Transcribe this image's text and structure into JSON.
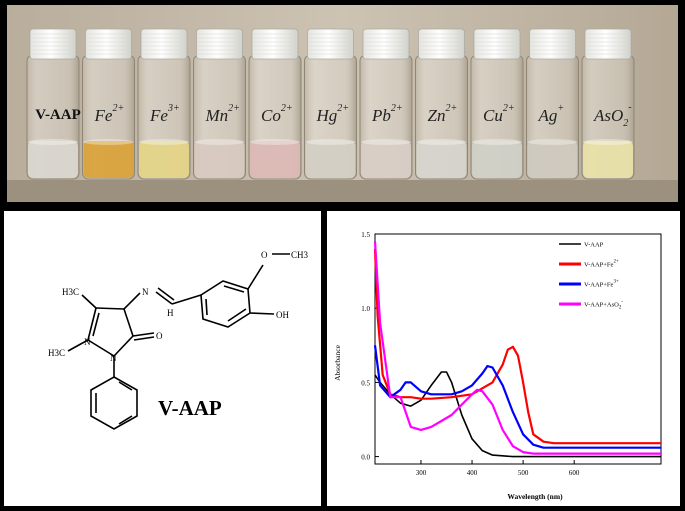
{
  "photo": {
    "vial_labels": [
      "V-AAP",
      "Fe2+",
      "Fe3+",
      "Mn2+",
      "Co2+",
      "Hg2+",
      "Pb2+",
      "Zn2+",
      "Cu2+",
      "Ag+",
      "AsO2-"
    ],
    "label_text": {
      "v0": "V-AAP",
      "v1": {
        "base": "Fe",
        "sup": "2+"
      },
      "v2": {
        "base": "Fe",
        "sup": "3+"
      },
      "v3": {
        "base": "Mn",
        "sup": "2+"
      },
      "v4": {
        "base": "Co",
        "sup": "2+"
      },
      "v5": {
        "base": "Hg",
        "sup": "2+"
      },
      "v6": {
        "base": "Pb",
        "sup": "2+"
      },
      "v7": {
        "base": "Zn",
        "sup": "2+"
      },
      "v8": {
        "base": "Cu",
        "sup": "2+"
      },
      "v9": {
        "base": "Ag",
        "sup": "+"
      },
      "v10": {
        "base": "AsO",
        "sub": "2",
        "sup": "-"
      }
    },
    "solution_colors": [
      "#d9d6cf",
      "#d9a33c",
      "#e4d488",
      "#d8c9c0",
      "#dcb8b4",
      "#d3cfc4",
      "#d8cdc6",
      "#d6d4cc",
      "#d0d0c6",
      "#cfc9bf",
      "#e8e0a8"
    ]
  },
  "structure": {
    "compound_name": "V-AAP",
    "atoms": {
      "methoxy_o": "O",
      "methoxy_ch3": "CH3",
      "hydroxy": "OH",
      "imine_n": "N",
      "imine_h": "H",
      "ring_n1": "N",
      "ring_n2": "N",
      "carbonyl_o": "O",
      "c_methyl": "H3C",
      "n_methyl": "H3C"
    }
  },
  "chart_data": {
    "type": "line",
    "xlabel": "Wavelength (nm)",
    "ylabel": "Absorbance",
    "xlim": [
      210,
      770
    ],
    "ylim": [
      -0.05,
      1.5
    ],
    "xticks": [
      "300",
      "400",
      "500",
      "600"
    ],
    "yticks": [
      "0.0",
      "0.5",
      "1.0",
      "1.5"
    ],
    "legend_placement": "top-right",
    "series": [
      {
        "name": "V-AAP",
        "color": "#000000",
        "x": [
          210,
          220,
          240,
          260,
          280,
          300,
          320,
          340,
          350,
          360,
          380,
          400,
          420,
          440,
          480,
          520,
          600,
          700,
          770
        ],
        "y": [
          0.55,
          0.5,
          0.42,
          0.36,
          0.34,
          0.38,
          0.48,
          0.57,
          0.57,
          0.5,
          0.28,
          0.12,
          0.04,
          0.01,
          0.0,
          0.0,
          0.0,
          0.0,
          0.0
        ]
      },
      {
        "name": "V-AAP+Fe2+",
        "color": "#ff0000",
        "x": [
          210,
          215,
          225,
          240,
          260,
          280,
          300,
          320,
          360,
          400,
          440,
          460,
          470,
          480,
          490,
          500,
          510,
          520,
          540,
          560,
          600,
          700,
          770
        ],
        "y": [
          1.4,
          0.95,
          0.55,
          0.42,
          0.4,
          0.4,
          0.39,
          0.39,
          0.4,
          0.42,
          0.5,
          0.62,
          0.72,
          0.74,
          0.68,
          0.5,
          0.3,
          0.15,
          0.1,
          0.09,
          0.09,
          0.09,
          0.09
        ]
      },
      {
        "name": "V-AAP+Fe3+",
        "color": "#0000ff",
        "x": [
          210,
          220,
          240,
          260,
          270,
          280,
          300,
          320,
          360,
          380,
          400,
          420,
          430,
          440,
          460,
          480,
          500,
          520,
          540,
          600,
          700,
          770
        ],
        "y": [
          0.75,
          0.48,
          0.4,
          0.45,
          0.5,
          0.5,
          0.44,
          0.42,
          0.42,
          0.44,
          0.48,
          0.56,
          0.61,
          0.6,
          0.48,
          0.3,
          0.15,
          0.08,
          0.06,
          0.06,
          0.06,
          0.06
        ]
      },
      {
        "name": "V-AAP+AsO2-",
        "color": "#ff00ff",
        "x": [
          210,
          220,
          240,
          260,
          280,
          300,
          320,
          340,
          360,
          380,
          400,
          410,
          420,
          440,
          460,
          480,
          500,
          520,
          600,
          700,
          770
        ],
        "y": [
          1.45,
          0.9,
          0.4,
          0.4,
          0.2,
          0.18,
          0.2,
          0.24,
          0.28,
          0.35,
          0.42,
          0.45,
          0.44,
          0.35,
          0.18,
          0.07,
          0.03,
          0.02,
          0.02,
          0.02,
          0.02
        ]
      }
    ]
  }
}
